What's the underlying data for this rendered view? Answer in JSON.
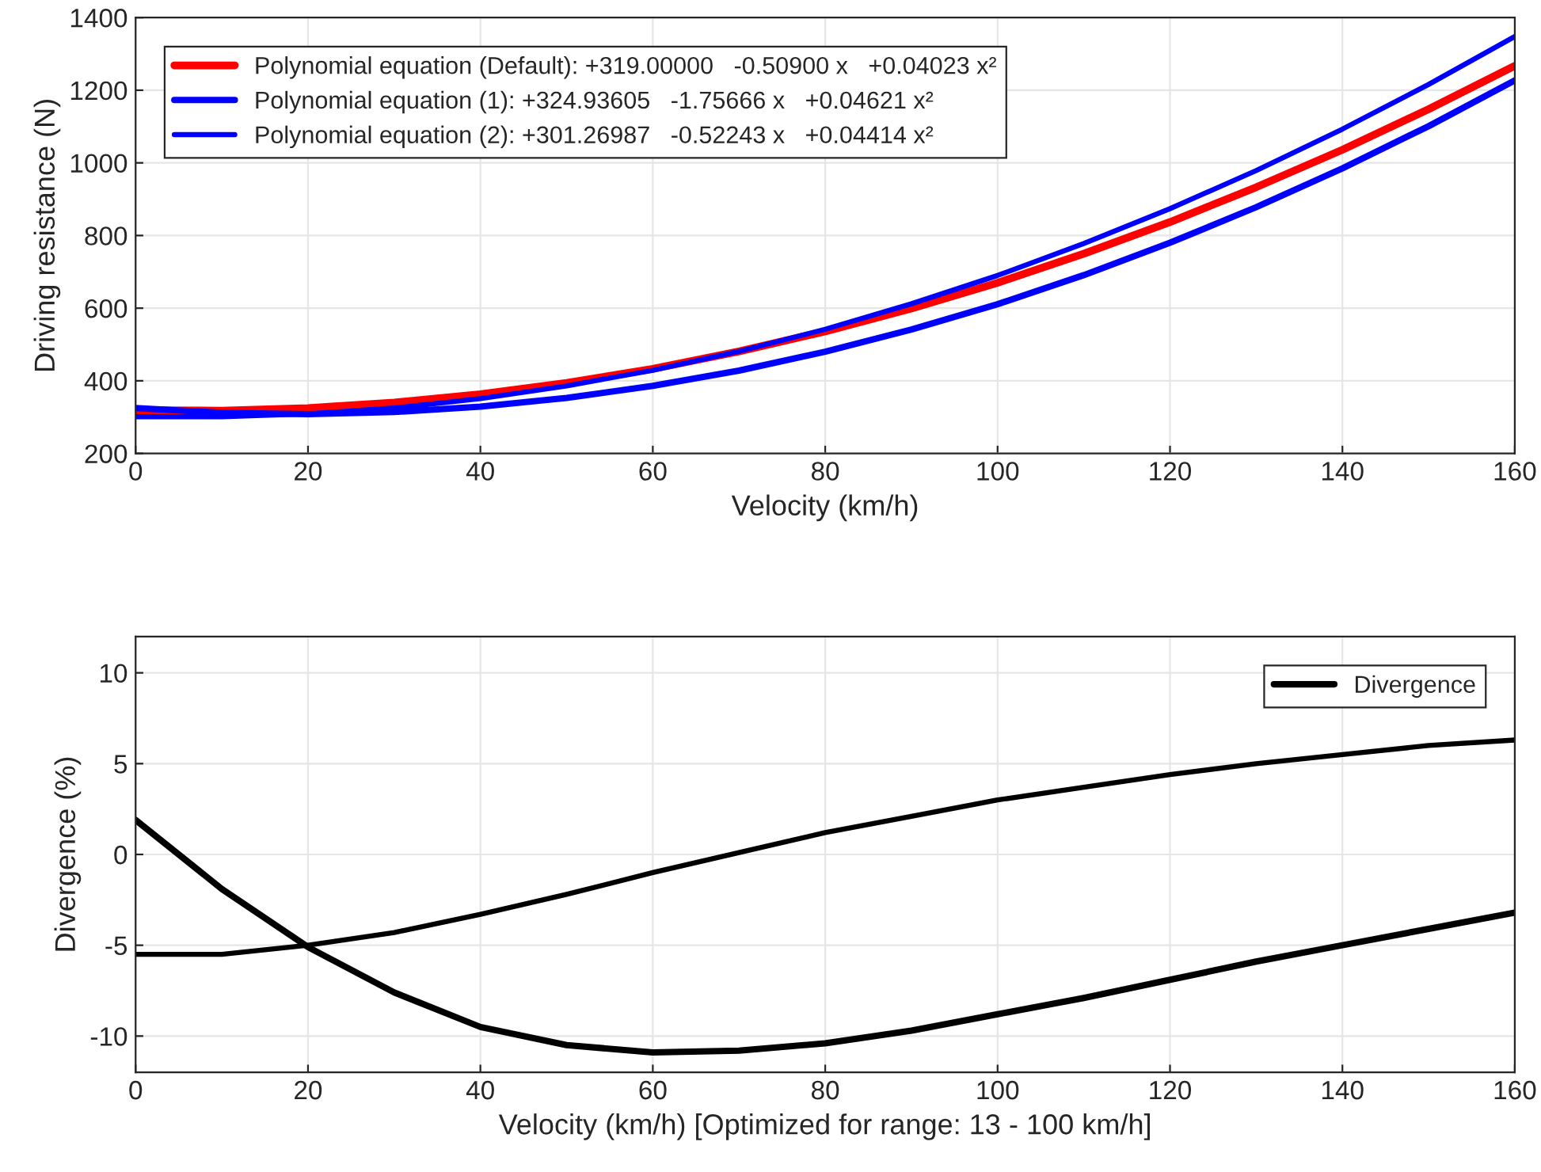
{
  "chart_data": [
    {
      "type": "line",
      "xlabel": "Velocity (km/h)",
      "ylabel": "Driving resistance (N)",
      "x": [
        0,
        10,
        20,
        30,
        40,
        50,
        60,
        70,
        80,
        90,
        100,
        110,
        120,
        130,
        140,
        150,
        160
      ],
      "xlim": [
        0,
        160
      ],
      "xticks": [
        0,
        20,
        40,
        60,
        80,
        100,
        120,
        140,
        160
      ],
      "ylim": [
        200,
        1400
      ],
      "yticks": [
        200,
        400,
        600,
        800,
        1000,
        1200,
        1400
      ],
      "grid": true,
      "legend": "top left",
      "line_style": "solid",
      "series": [
        {
          "name": "Polynomial equation (Default): +319.00000   -0.50900 x   +0.04023 x²",
          "color": "#ff0000",
          "values": [
            319,
            318,
            325,
            340,
            363,
            394,
            433,
            481,
            536,
            599,
            670,
            750,
            837,
            933,
            1036,
            1148,
            1267
          ]
        },
        {
          "name": "Polynomial equation (1): +324.93605   -1.75666 x   +0.04621 x²",
          "color": "#0000ff",
          "values": [
            325,
            312,
            308,
            314,
            329,
            353,
            386,
            428,
            480,
            541,
            611,
            691,
            780,
            878,
            985,
            1101,
            1227
          ]
        },
        {
          "name": "Polynomial equation (2): +301.26987   -0.52243 x   +0.04414 x²",
          "color": "#0000ff",
          "values": [
            301,
            301,
            309,
            325,
            351,
            386,
            429,
            481,
            542,
            612,
            690,
            778,
            874,
            979,
            1093,
            1216,
            1348
          ]
        }
      ]
    },
    {
      "type": "line",
      "xlabel": "Velocity (km/h) [Optimized for range: 13 - 100 km/h]",
      "ylabel": "Divergence (%)",
      "x": [
        0,
        10,
        20,
        30,
        40,
        50,
        60,
        70,
        80,
        90,
        100,
        110,
        120,
        130,
        140,
        150,
        160
      ],
      "xlim": [
        0,
        160
      ],
      "xticks": [
        0,
        20,
        40,
        60,
        80,
        100,
        120,
        140,
        160
      ],
      "ylim": [
        -12,
        12
      ],
      "yticks": [
        -10,
        -5,
        0,
        5,
        10
      ],
      "grid": true,
      "legend": "top right",
      "line_style": "solid",
      "series": [
        {
          "name": "Divergence",
          "color": "#000000",
          "values": [
            1.9,
            -1.9,
            -5.1,
            -7.6,
            -9.5,
            -10.5,
            -10.9,
            -10.8,
            -10.4,
            -9.7,
            -8.8,
            -7.9,
            -6.9,
            -5.9,
            -5.0,
            -4.1,
            -3.2
          ]
        },
        {
          "color": "#000000",
          "values": [
            -5.5,
            -5.5,
            -5.0,
            -4.3,
            -3.3,
            -2.2,
            -1.0,
            0.1,
            1.2,
            2.1,
            3.0,
            3.7,
            4.4,
            5.0,
            5.5,
            6.0,
            6.3
          ]
        }
      ]
    }
  ]
}
